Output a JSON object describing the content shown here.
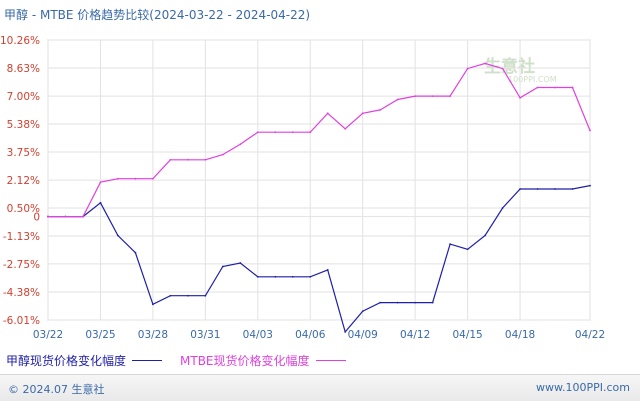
{
  "header": {
    "title": "甲醇 - MTBE 价格趋势比较(2024-03-22 - 2024-04-22)"
  },
  "legend": {
    "items": [
      {
        "label": "甲醇现货价格变化幅度",
        "color": "#1f1fa8"
      },
      {
        "label": "MTBE现货价格变化幅度",
        "color": "#e040e0"
      }
    ]
  },
  "footer": {
    "left": "© 2024.07 生意社",
    "right": "www.100PPI.com"
  },
  "watermark": {
    "main": "生意社",
    "sub": "100PPI.COM"
  },
  "chart_data": {
    "type": "line",
    "title": "甲醇 - MTBE 价格趋势比较(2024-03-22 - 2024-04-22)",
    "xlabel": "",
    "ylabel": "",
    "ylim": [
      -6.01,
      10.26
    ],
    "y_ticks": [
      "10.26%",
      "8.63%",
      "7.00%",
      "5.38%",
      "3.75%",
      "2.12%",
      "0.50%",
      "0",
      "-1.13%",
      "-2.75%",
      "-4.38%",
      "-6.01%"
    ],
    "y_tick_values": [
      10.26,
      8.63,
      7.0,
      5.38,
      3.75,
      2.12,
      0.5,
      0,
      -1.13,
      -2.75,
      -4.38,
      -6.01
    ],
    "x_ticks": [
      "03/22",
      "03/25",
      "03/28",
      "03/31",
      "04/03",
      "04/06",
      "04/09",
      "04/12",
      "04/15",
      "04/18",
      "04/22"
    ],
    "x": [
      "03/22",
      "03/23",
      "03/24",
      "03/25",
      "03/26",
      "03/27",
      "03/28",
      "03/29",
      "03/30",
      "03/31",
      "04/01",
      "04/02",
      "04/03",
      "04/04",
      "04/05",
      "04/06",
      "04/07",
      "04/08",
      "04/09",
      "04/10",
      "04/11",
      "04/12",
      "04/13",
      "04/14",
      "04/15",
      "04/16",
      "04/17",
      "04/18",
      "04/19",
      "04/20",
      "04/21",
      "04/22"
    ],
    "grid": true,
    "legend_position": "bottom",
    "series": [
      {
        "name": "甲醇现货价格变化幅度",
        "color": "#1f1fa8",
        "values": [
          0,
          0,
          0,
          0.8,
          -1.1,
          -2.1,
          -5.1,
          -4.6,
          -4.6,
          -4.6,
          -2.9,
          -2.7,
          -3.5,
          -3.5,
          -3.5,
          -3.5,
          -3.1,
          -6.7,
          -5.5,
          -5.0,
          -5.0,
          -5.0,
          -5.0,
          -1.6,
          -1.9,
          -1.1,
          0.5,
          1.6,
          1.6,
          1.6,
          1.6,
          1.8
        ]
      },
      {
        "name": "MTBE现货价格变化幅度",
        "color": "#e040e0",
        "values": [
          0,
          0,
          0,
          2.0,
          2.2,
          2.2,
          2.2,
          3.3,
          3.3,
          3.3,
          3.6,
          4.2,
          4.9,
          4.9,
          4.9,
          4.9,
          6.0,
          5.1,
          6.0,
          6.2,
          6.8,
          7.0,
          7.0,
          7.0,
          8.6,
          8.9,
          8.6,
          6.9,
          7.5,
          7.5,
          7.5,
          5.0
        ]
      }
    ]
  }
}
